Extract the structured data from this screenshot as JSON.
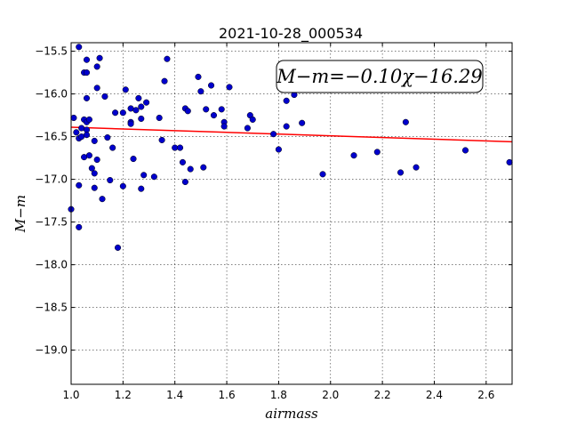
{
  "chart_data": {
    "type": "scatter",
    "title": "2021-10-28_000534",
    "xlabel": "airmass",
    "ylabel": "M−m",
    "xlim": [
      1.0,
      2.7
    ],
    "ylim": [
      -19.4,
      -15.4
    ],
    "y_inverted": true,
    "grid": true,
    "x_ticks": [
      1.0,
      1.2,
      1.4,
      1.6,
      1.8,
      2.0,
      2.2,
      2.4,
      2.6
    ],
    "x_tick_labels": [
      "1.0",
      "1.2",
      "1.4",
      "1.6",
      "1.8",
      "2.0",
      "2.2",
      "2.4",
      "2.6"
    ],
    "y_ticks": [
      -15.5,
      -16.0,
      -16.5,
      -17.0,
      -17.5,
      -18.0,
      -18.5,
      -19.0
    ],
    "y_tick_labels": [
      "−15.5",
      "−16.0",
      "−16.5",
      "−17.0",
      "−17.5",
      "−18.0",
      "−18.5",
      "−19.0"
    ],
    "annotation": "M−m=−0.10χ−16.29",
    "fit": {
      "slope": -0.1,
      "intercept": -16.29,
      "color": "#ff0000"
    },
    "marker_color": "#0000cc",
    "points": [
      [
        1.0,
        -17.35
      ],
      [
        1.01,
        -16.28
      ],
      [
        1.02,
        -16.45
      ],
      [
        1.03,
        -15.45
      ],
      [
        1.03,
        -16.52
      ],
      [
        1.03,
        -17.07
      ],
      [
        1.03,
        -17.56
      ],
      [
        1.04,
        -16.4
      ],
      [
        1.04,
        -16.5
      ],
      [
        1.05,
        -15.75
      ],
      [
        1.05,
        -16.3
      ],
      [
        1.05,
        -16.74
      ],
      [
        1.06,
        -15.75
      ],
      [
        1.06,
        -16.05
      ],
      [
        1.06,
        -16.33
      ],
      [
        1.06,
        -16.42
      ],
      [
        1.06,
        -16.48
      ],
      [
        1.06,
        -15.6
      ],
      [
        1.07,
        -16.3
      ],
      [
        1.07,
        -16.72
      ],
      [
        1.08,
        -16.87
      ],
      [
        1.09,
        -16.55
      ],
      [
        1.09,
        -16.93
      ],
      [
        1.09,
        -17.1
      ],
      [
        1.1,
        -15.93
      ],
      [
        1.1,
        -15.68
      ],
      [
        1.1,
        -16.77
      ],
      [
        1.11,
        -15.58
      ],
      [
        1.12,
        -17.23
      ],
      [
        1.13,
        -16.03
      ],
      [
        1.14,
        -16.51
      ],
      [
        1.15,
        -17.01
      ],
      [
        1.16,
        -16.63
      ],
      [
        1.17,
        -16.22
      ],
      [
        1.18,
        -17.8
      ],
      [
        1.2,
        -16.22
      ],
      [
        1.2,
        -17.08
      ],
      [
        1.21,
        -15.95
      ],
      [
        1.23,
        -16.17
      ],
      [
        1.23,
        -16.33
      ],
      [
        1.23,
        -16.35
      ],
      [
        1.24,
        -16.76
      ],
      [
        1.25,
        -16.19
      ],
      [
        1.26,
        -16.05
      ],
      [
        1.27,
        -16.15
      ],
      [
        1.27,
        -16.29
      ],
      [
        1.27,
        -17.11
      ],
      [
        1.28,
        -16.95
      ],
      [
        1.29,
        -16.1
      ],
      [
        1.32,
        -16.97
      ],
      [
        1.34,
        -16.28
      ],
      [
        1.35,
        -16.54
      ],
      [
        1.36,
        -15.85
      ],
      [
        1.37,
        -15.59
      ],
      [
        1.4,
        -16.63
      ],
      [
        1.42,
        -16.63
      ],
      [
        1.43,
        -16.8
      ],
      [
        1.44,
        -16.17
      ],
      [
        1.44,
        -17.03
      ],
      [
        1.45,
        -16.2
      ],
      [
        1.46,
        -16.88
      ],
      [
        1.49,
        -15.8
      ],
      [
        1.5,
        -15.97
      ],
      [
        1.51,
        -16.86
      ],
      [
        1.52,
        -16.18
      ],
      [
        1.54,
        -15.9
      ],
      [
        1.55,
        -16.25
      ],
      [
        1.58,
        -16.18
      ],
      [
        1.59,
        -16.33
      ],
      [
        1.59,
        -16.38
      ],
      [
        1.61,
        -15.92
      ],
      [
        1.68,
        -16.4
      ],
      [
        1.69,
        -16.25
      ],
      [
        1.7,
        -16.3
      ],
      [
        1.78,
        -16.47
      ],
      [
        1.8,
        -16.65
      ],
      [
        1.83,
        -16.38
      ],
      [
        1.83,
        -16.08
      ],
      [
        1.86,
        -16.01
      ],
      [
        1.89,
        -16.34
      ],
      [
        1.97,
        -16.94
      ],
      [
        2.09,
        -16.72
      ],
      [
        2.18,
        -16.68
      ],
      [
        2.27,
        -16.92
      ],
      [
        2.29,
        -16.33
      ],
      [
        2.33,
        -16.86
      ],
      [
        2.52,
        -16.66
      ],
      [
        2.69,
        -16.8
      ]
    ]
  }
}
